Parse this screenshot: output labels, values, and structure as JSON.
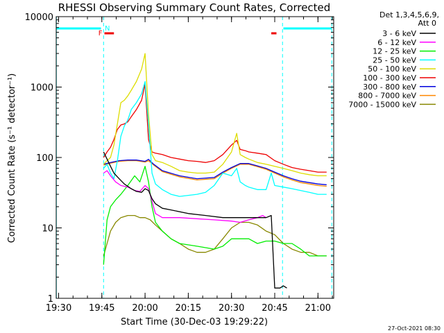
{
  "chart_data": {
    "type": "line",
    "title": "RHESSI Observing Summary Count Rates, Corrected",
    "xlabel": "Start Time (30-Dec-03 19:29:22)",
    "ylabel": "Corrected Count Rate (s⁻¹ detector⁻¹)",
    "yscale": "log",
    "xlim": [
      19.486,
      21.091
    ],
    "ylim": [
      1,
      10000
    ],
    "x_ticks": [
      19.5,
      19.75,
      20.0,
      20.25,
      20.5,
      20.75,
      21.0
    ],
    "x_tick_labels": [
      "19:30",
      "19:45",
      "20:00",
      "20:15",
      "20:30",
      "20:45",
      "21:00"
    ],
    "y_ticks": [
      1,
      10,
      100,
      1000,
      10000
    ],
    "y_tick_labels": [
      "1",
      "10",
      "100",
      "1000",
      "10000"
    ],
    "grid": false,
    "legend_position": "right",
    "legend_header": [
      "Det 1,3,4,5,6,9,",
      "Att 0"
    ],
    "series": [
      {
        "name": "3 - 6 keV",
        "color": "#000000",
        "x": [
          19.76,
          19.78,
          19.8,
          19.82,
          19.85,
          19.88,
          19.92,
          19.95,
          19.98,
          20.0,
          20.02,
          20.04,
          20.06,
          20.1,
          20.15,
          20.25,
          20.35,
          20.45,
          20.5,
          20.55,
          20.6,
          20.65,
          20.7,
          20.73,
          20.75,
          20.78,
          20.8,
          20.82
        ],
        "y": [
          120,
          95,
          75,
          60,
          50,
          42,
          36,
          33,
          32,
          36,
          34,
          26,
          22,
          19,
          18,
          16,
          15,
          14,
          14,
          14,
          14,
          14,
          14,
          15,
          1.4,
          1.4,
          1.5,
          1.4
        ]
      },
      {
        "name": "6 - 12 keV",
        "color": "#ff00ff",
        "x": [
          19.76,
          19.78,
          19.8,
          19.83,
          19.86,
          19.9,
          19.94,
          19.97,
          20.0,
          20.02,
          20.04,
          20.06,
          20.1,
          20.2,
          20.3,
          20.4,
          20.5,
          20.55,
          20.6,
          20.65,
          20.68,
          20.7
        ],
        "y": [
          60,
          65,
          55,
          45,
          40,
          38,
          34,
          33,
          40,
          36,
          24,
          16,
          14,
          14,
          13.5,
          13,
          12.5,
          12,
          13,
          14,
          15,
          14
        ]
      },
      {
        "name": "12 - 25 keV",
        "color": "#00ee00",
        "x": [
          19.76,
          19.78,
          19.8,
          19.83,
          19.86,
          19.9,
          19.94,
          19.97,
          20.0,
          20.02,
          20.04,
          20.06,
          20.1,
          20.15,
          20.2,
          20.3,
          20.4,
          20.45,
          20.5,
          20.55,
          20.6,
          20.65,
          20.7,
          20.75,
          20.8,
          20.85,
          20.9,
          20.95,
          21.0,
          21.05
        ],
        "y": [
          3,
          13,
          20,
          25,
          30,
          40,
          55,
          45,
          75,
          45,
          20,
          12,
          9,
          7,
          6,
          5.5,
          5,
          5.5,
          7,
          7,
          7,
          6,
          6.5,
          6.5,
          6,
          6,
          5,
          4,
          4,
          4
        ]
      },
      {
        "name": "25 - 50 keV",
        "color": "#00ffff",
        "x": [
          19.76,
          19.78,
          19.8,
          19.82,
          19.84,
          19.86,
          19.88,
          19.9,
          19.92,
          19.95,
          19.98,
          20.0,
          20.02,
          20.04,
          20.06,
          20.1,
          20.15,
          20.2,
          20.25,
          20.3,
          20.35,
          20.4,
          20.45,
          20.5,
          20.53,
          20.55,
          20.58,
          20.6,
          20.65,
          20.7,
          20.73,
          20.75,
          20.8,
          20.85,
          20.9,
          20.95,
          21.0,
          21.05
        ],
        "y": [
          70,
          80,
          60,
          50,
          90,
          200,
          280,
          340,
          480,
          600,
          800,
          1200,
          300,
          60,
          42,
          35,
          30,
          28,
          29,
          30,
          32,
          40,
          60,
          55,
          70,
          45,
          40,
          38,
          35,
          35,
          60,
          40,
          38,
          36,
          34,
          32,
          30,
          30
        ]
      },
      {
        "name": "50 - 100 keV",
        "color": "#dddd00",
        "x": [
          19.76,
          19.78,
          19.8,
          19.82,
          19.84,
          19.86,
          19.88,
          19.9,
          19.92,
          19.95,
          19.98,
          20.0,
          20.02,
          20.04,
          20.06,
          20.1,
          20.15,
          20.2,
          20.25,
          20.3,
          20.35,
          20.4,
          20.45,
          20.5,
          20.53,
          20.55,
          20.58,
          20.6,
          20.65,
          20.7,
          20.75,
          20.8,
          20.85,
          20.9,
          20.95,
          21.0,
          21.05
        ],
        "y": [
          80,
          90,
          100,
          150,
          300,
          600,
          650,
          750,
          900,
          1200,
          1800,
          3000,
          400,
          110,
          90,
          85,
          75,
          65,
          62,
          60,
          60,
          62,
          80,
          120,
          220,
          110,
          100,
          95,
          85,
          80,
          75,
          70,
          65,
          60,
          57,
          55,
          55
        ]
      },
      {
        "name": "100 - 300 keV",
        "color": "#ee0000",
        "x": [
          19.76,
          19.78,
          19.8,
          19.82,
          19.84,
          19.86,
          19.88,
          19.9,
          19.92,
          19.95,
          19.98,
          20.0,
          20.02,
          20.04,
          20.06,
          20.1,
          20.15,
          20.2,
          20.25,
          20.3,
          20.35,
          20.4,
          20.45,
          20.5,
          20.53,
          20.55,
          20.58,
          20.6,
          20.65,
          20.7,
          20.75,
          20.8,
          20.85,
          20.9,
          20.95,
          21.0,
          21.05
        ],
        "y": [
          100,
          120,
          140,
          180,
          250,
          290,
          300,
          320,
          380,
          480,
          650,
          1100,
          180,
          120,
          115,
          110,
          100,
          95,
          90,
          88,
          85,
          90,
          110,
          150,
          175,
          130,
          125,
          120,
          115,
          110,
          90,
          80,
          72,
          68,
          65,
          62,
          62
        ]
      },
      {
        "name": "300 - 800 keV",
        "color": "#0000dd",
        "x": [
          19.76,
          19.8,
          19.85,
          19.9,
          19.95,
          20.0,
          20.02,
          20.05,
          20.1,
          20.2,
          20.3,
          20.4,
          20.45,
          20.5,
          20.55,
          20.6,
          20.65,
          20.7,
          20.75,
          20.8,
          20.85,
          20.9,
          20.95,
          21.0,
          21.05
        ],
        "y": [
          80,
          85,
          90,
          92,
          92,
          88,
          94,
          80,
          65,
          55,
          50,
          52,
          62,
          72,
          82,
          82,
          76,
          70,
          62,
          55,
          50,
          46,
          44,
          42,
          41
        ]
      },
      {
        "name": "800 - 7000 keV",
        "color": "#ff8800",
        "x": [
          19.76,
          19.8,
          19.85,
          19.9,
          19.95,
          20.0,
          20.02,
          20.05,
          20.1,
          20.2,
          20.3,
          20.4,
          20.45,
          20.5,
          20.55,
          20.6,
          20.65,
          20.7,
          20.75,
          20.8,
          20.85,
          20.9,
          20.95,
          21.0,
          21.05
        ],
        "y": [
          78,
          83,
          88,
          90,
          90,
          86,
          90,
          78,
          63,
          53,
          48,
          50,
          60,
          70,
          80,
          80,
          74,
          68,
          60,
          53,
          48,
          44,
          42,
          40,
          39
        ]
      },
      {
        "name": "7000 - 15000 keV",
        "color": "#888800",
        "x": [
          19.76,
          19.78,
          19.8,
          19.83,
          19.86,
          19.9,
          19.94,
          19.97,
          20.0,
          20.03,
          20.06,
          20.1,
          20.15,
          20.2,
          20.25,
          20.3,
          20.35,
          20.4,
          20.45,
          20.5,
          20.55,
          20.6,
          20.65,
          20.7,
          20.75,
          20.8,
          20.85,
          20.9,
          20.95,
          21.0,
          21.05
        ],
        "y": [
          4,
          6,
          9,
          12,
          14,
          15,
          15,
          14,
          14,
          13,
          11,
          9,
          7,
          6,
          5,
          4.5,
          4.5,
          5,
          7,
          10,
          12,
          12,
          11,
          9,
          8,
          6,
          5,
          4.5,
          4.5,
          4,
          4
        ]
      }
    ],
    "annotations": [
      {
        "label": "F",
        "kind": "flag",
        "color": "#ee0000"
      },
      {
        "label": "N",
        "kind": "night",
        "color": "#00ffff"
      }
    ]
  },
  "footer": {
    "date_stamp": "27-Oct-2021 08:30"
  }
}
